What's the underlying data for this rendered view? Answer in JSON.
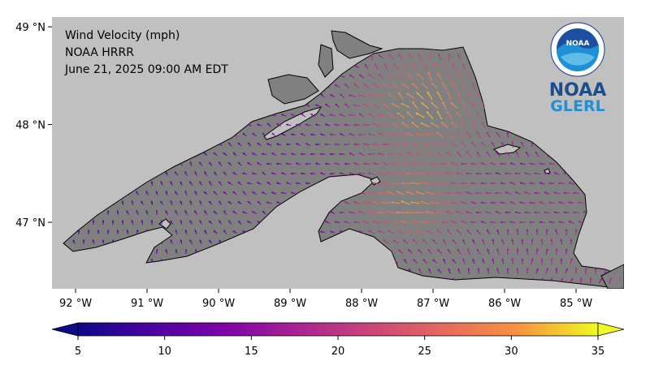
{
  "info": {
    "line1": "Wind Velocity (mph)",
    "line2": "NOAA HRRR",
    "line3": "June 21, 2025 09:00 AM EDT"
  },
  "logo": {
    "seal_text": "NOAA",
    "name": "NOAA",
    "sub": "GLERL"
  },
  "axes": {
    "lat_ticks": [
      {
        "value": 49,
        "label": "49 °N"
      },
      {
        "value": 48,
        "label": "48 °N"
      },
      {
        "value": 47,
        "label": "47 °N"
      }
    ],
    "lon_ticks": [
      {
        "value": -92,
        "label": "92 °W"
      },
      {
        "value": -91,
        "label": "91 °W"
      },
      {
        "value": -90,
        "label": "90 °W"
      },
      {
        "value": -89,
        "label": "89 °W"
      },
      {
        "value": -88,
        "label": "88 °W"
      },
      {
        "value": -87,
        "label": "87 °W"
      },
      {
        "value": -86,
        "label": "86 °W"
      },
      {
        "value": -85,
        "label": "85 °W"
      }
    ],
    "lon_range": [
      -92.33,
      -84.33
    ],
    "lat_range": [
      46.32,
      49.1
    ]
  },
  "colorbar": {
    "range": [
      5,
      35
    ],
    "ticks": [
      "5",
      "10",
      "15",
      "20",
      "25",
      "30",
      "35"
    ],
    "colormap": "plasma",
    "extend": "both"
  },
  "colors": {
    "land": "#c0c0c0",
    "water": "#808080"
  }
}
